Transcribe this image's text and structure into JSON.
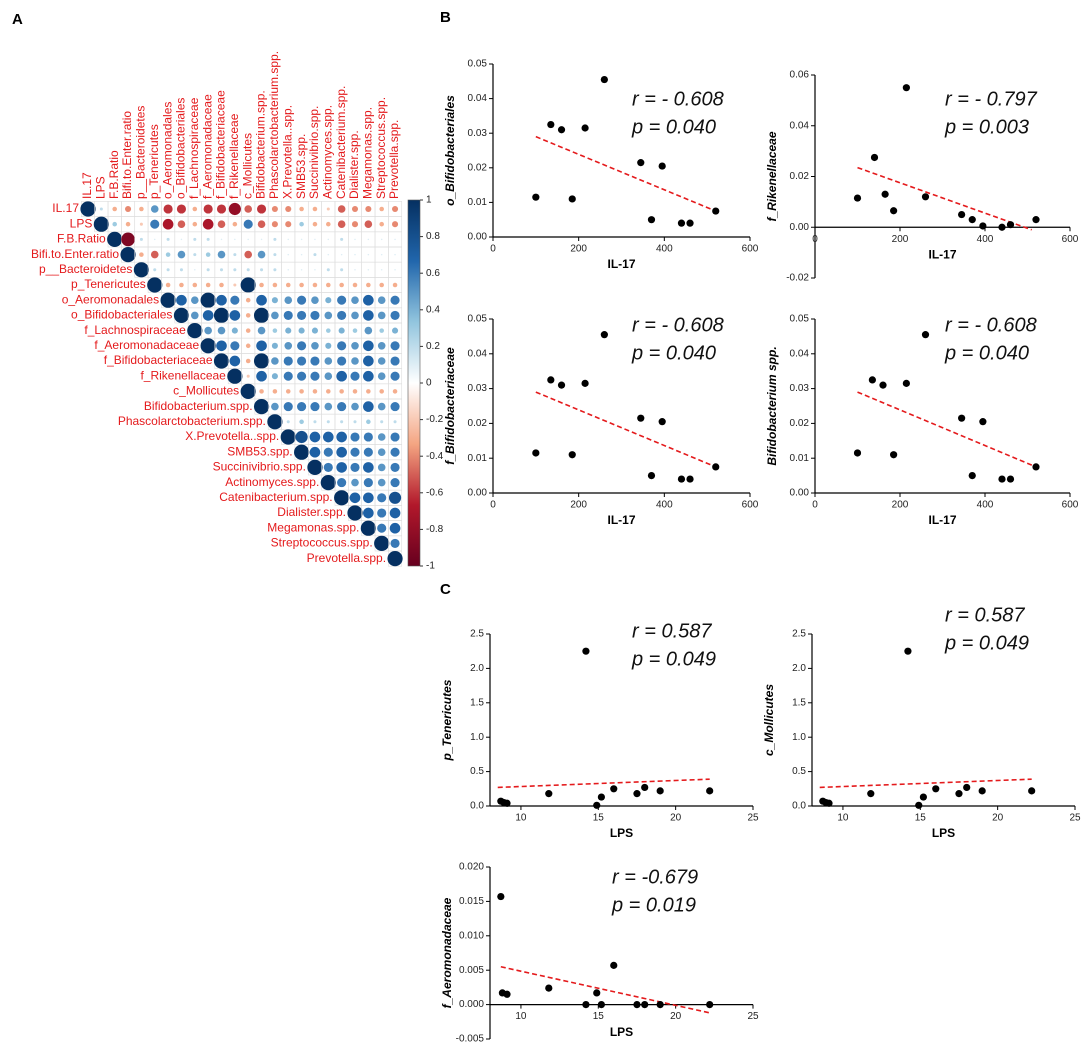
{
  "chart_data": [
    {
      "type": "corrplot",
      "panel": "A",
      "labels": [
        "IL.17",
        "LPS",
        "F.B.Ratio",
        "Bifi.to.Enter.ratio",
        "p__Bacteroidetes",
        "p_Tenericutes",
        "o_Aeromonadales",
        "o_Bifidobacteriales",
        "f_Lachnospiraceae",
        "f_Aeromonadaceae",
        "f_Bifidobacteriaceae",
        "f_Rikenellaceae",
        "c_Mollicutes",
        "Bifidobacterium.spp.",
        "Phascolarctobacterium.spp.",
        "X.Prevotella..spp.",
        "SMB53.spp.",
        "Succinivibrio.spp.",
        "Actinomyces.spp.",
        "Catenibacterium.spp.",
        "Dialister.spp.",
        "Megamonas.spp.",
        "Streptococcus.spp.",
        "Prevotella.spp."
      ],
      "matrix": [
        [
          1,
          0.2,
          -0.3,
          -0.4,
          -0.3,
          0.5,
          -0.6,
          -0.6,
          -0.3,
          -0.6,
          -0.6,
          -0.8,
          -0.5,
          -0.6,
          -0.4,
          -0.4,
          -0.3,
          -0.3,
          -0.2,
          -0.5,
          -0.4,
          -0.4,
          -0.3,
          -0.4
        ],
        [
          1,
          0.3,
          -0.3,
          -0.2,
          0.6,
          -0.7,
          -0.5,
          -0.3,
          -0.7,
          -0.5,
          -0.3,
          0.6,
          -0.5,
          -0.4,
          -0.4,
          0.3,
          -0.3,
          -0.3,
          -0.5,
          -0.4,
          -0.5,
          -0.3,
          -0.4
        ],
        [
          1,
          -0.9,
          0.2,
          0.1,
          0.2,
          0.1,
          0.2,
          0.2,
          0.1,
          0.1,
          0.1,
          0.1,
          0.2,
          0.1,
          0.1,
          0.1,
          0.1,
          0.2,
          0.1,
          0.1,
          0.1,
          0.1
        ],
        [
          1,
          -0.3,
          -0.5,
          0.3,
          0.5,
          0.2,
          0.3,
          0.5,
          0.2,
          -0.5,
          0.5,
          0.2,
          0.1,
          0.1,
          0.2,
          0.1,
          0.1,
          0.1,
          0.1,
          0.1,
          0.1
        ],
        [
          1,
          0.2,
          0.2,
          0.2,
          0.1,
          0.2,
          0.2,
          0.2,
          0.2,
          0.2,
          0.2,
          0.1,
          0.1,
          0.1,
          0.2,
          0.2,
          0.1,
          0.1,
          0.1,
          0.1
        ],
        [
          1,
          -0.3,
          -0.3,
          -0.3,
          -0.3,
          -0.3,
          -0.2,
          1,
          -0.3,
          -0.3,
          -0.3,
          -0.3,
          -0.3,
          -0.3,
          -0.3,
          -0.3,
          -0.3,
          -0.3,
          -0.3
        ],
        [
          1,
          0.7,
          0.5,
          1,
          0.7,
          0.6,
          -0.3,
          0.7,
          0.4,
          0.5,
          0.6,
          0.5,
          0.4,
          0.6,
          0.5,
          0.7,
          0.5,
          0.6
        ],
        [
          1,
          0.5,
          0.7,
          1,
          0.7,
          -0.3,
          1,
          0.5,
          0.6,
          0.6,
          0.6,
          0.5,
          0.6,
          0.5,
          0.7,
          0.5,
          0.6
        ],
        [
          1,
          0.5,
          0.5,
          0.4,
          -0.3,
          0.5,
          0.3,
          0.4,
          0.4,
          0.4,
          0.3,
          0.4,
          0.3,
          0.5,
          0.3,
          0.4
        ],
        [
          1,
          0.7,
          0.6,
          -0.3,
          0.7,
          0.4,
          0.5,
          0.6,
          0.5,
          0.4,
          0.6,
          0.5,
          0.7,
          0.5,
          0.6
        ],
        [
          1,
          0.7,
          -0.3,
          1,
          0.5,
          0.6,
          0.6,
          0.6,
          0.5,
          0.6,
          0.5,
          0.7,
          0.5,
          0.6
        ],
        [
          1,
          -0.2,
          0.7,
          0.4,
          0.6,
          0.6,
          0.6,
          0.5,
          0.7,
          0.6,
          0.7,
          0.5,
          0.6
        ],
        [
          1,
          -0.3,
          -0.3,
          -0.3,
          -0.3,
          -0.3,
          -0.3,
          -0.3,
          -0.3,
          -0.3,
          -0.3,
          -0.3
        ],
        [
          1,
          0.5,
          0.6,
          0.6,
          0.6,
          0.5,
          0.6,
          0.5,
          0.7,
          0.5,
          0.6
        ],
        [
          1,
          0.2,
          0.3,
          0.2,
          0.2,
          0.2,
          0.2,
          0.3,
          0.2,
          0.2
        ],
        [
          1,
          0.8,
          0.7,
          0.7,
          0.7,
          0.6,
          0.6,
          0.5,
          0.6
        ],
        [
          1,
          0.7,
          0.6,
          0.7,
          0.6,
          0.6,
          0.5,
          0.6
        ],
        [
          1,
          0.6,
          0.7,
          0.6,
          0.7,
          0.5,
          0.6
        ],
        [
          1,
          0.6,
          0.5,
          0.6,
          0.5,
          0.6
        ],
        [
          1,
          0.7,
          0.7,
          0.6,
          0.8
        ],
        [
          1,
          0.7,
          0.6,
          0.7
        ],
        [
          1,
          0.6,
          0.7
        ],
        [
          1,
          0.6
        ],
        [
          1
        ]
      ],
      "colorscale": [
        "#67001f",
        "#b2182b",
        "#f4a582",
        "#ffffff",
        "#92c5de",
        "#2166ac",
        "#053061"
      ],
      "cbar_ticks": [
        1,
        0.8,
        0.6,
        0.4,
        0.2,
        0,
        -0.2,
        -0.4,
        -0.6,
        -0.8,
        -1
      ],
      "label_color": "#e41a1c",
      "grid": true
    },
    {
      "type": "scatter",
      "panel": "B",
      "x": [
        100,
        135,
        160,
        185,
        215,
        260,
        345,
        370,
        395,
        440,
        460,
        520
      ],
      "y": [
        0.0115,
        0.0325,
        0.031,
        0.011,
        0.0315,
        0.0455,
        0.0215,
        0.005,
        0.0205,
        0.004,
        0.004,
        0.0075
      ],
      "color": "#000000",
      "fit": {
        "x": [
          100,
          520
        ],
        "y": [
          0.029,
          0.0075
        ],
        "color": "#e41a1c"
      },
      "x_label": "IL-17",
      "y_label": "o_Bifidobacteriales",
      "annotations": [
        "r = - 0.608",
        "p = 0.040"
      ],
      "xlim": [
        0,
        600
      ],
      "xticks": [
        0,
        200,
        400,
        600
      ],
      "ylim": [
        0,
        0.05
      ],
      "yticks": [
        {
          "value": 0,
          "label": "0.00"
        },
        0.01,
        0.02,
        0.03,
        0.04,
        0.05
      ]
    },
    {
      "type": "scatter",
      "x": [
        100,
        140,
        165,
        185,
        215,
        260,
        345,
        370,
        395,
        440,
        460,
        520
      ],
      "y": [
        0.0115,
        0.0275,
        0.013,
        0.0065,
        0.055,
        0.012,
        0.005,
        0.003,
        0.0005,
        0,
        0.001,
        0.003
      ],
      "color": "#000000",
      "fit": {
        "x": [
          100,
          510
        ],
        "y": [
          0.0235,
          -0.001
        ],
        "color": "#e41a1c"
      },
      "x_label": "IL-17",
      "y_label": "f_Rikenellaceae",
      "annotations": [
        "r = - 0.797",
        "p = 0.003"
      ],
      "xlim": [
        0,
        600
      ],
      "xticks": [
        0,
        200,
        400,
        600
      ],
      "ylim": [
        -0.02,
        0.06
      ],
      "yticks": [
        -0.02,
        {
          "value": 0,
          "label": "0.00"
        },
        0.02,
        0.04,
        0.06
      ]
    },
    {
      "type": "scatter",
      "x": [
        100,
        135,
        160,
        185,
        215,
        260,
        345,
        370,
        395,
        440,
        460,
        520
      ],
      "y": [
        0.0115,
        0.0325,
        0.031,
        0.011,
        0.0315,
        0.0455,
        0.0215,
        0.005,
        0.0205,
        0.004,
        0.004,
        0.0075
      ],
      "color": "#000000",
      "fit": {
        "x": [
          100,
          520
        ],
        "y": [
          0.029,
          0.0075
        ],
        "color": "#e41a1c"
      },
      "x_label": "IL-17",
      "y_label": "f_Bifidobacteriaceae",
      "annotations": [
        "r = - 0.608",
        "p = 0.040"
      ],
      "xlim": [
        0,
        600
      ],
      "xticks": [
        0,
        200,
        400,
        600
      ],
      "ylim": [
        0,
        0.05
      ],
      "yticks": [
        {
          "value": 0,
          "label": "0.00"
        },
        0.01,
        0.02,
        0.03,
        0.04,
        0.05
      ]
    },
    {
      "type": "scatter",
      "x": [
        100,
        135,
        160,
        185,
        215,
        260,
        345,
        370,
        395,
        440,
        460,
        520
      ],
      "y": [
        0.0115,
        0.0325,
        0.031,
        0.011,
        0.0315,
        0.0455,
        0.0215,
        0.005,
        0.0205,
        0.004,
        0.004,
        0.0075
      ],
      "color": "#000000",
      "fit": {
        "x": [
          100,
          520
        ],
        "y": [
          0.029,
          0.0075
        ],
        "color": "#e41a1c"
      },
      "x_label": "IL-17",
      "y_label": "Bifidobacterium spp.",
      "annotations": [
        "r = - 0.608",
        "p = 0.040"
      ],
      "xlim": [
        0,
        600
      ],
      "xticks": [
        0,
        200,
        400,
        600
      ],
      "ylim": [
        0,
        0.05
      ],
      "yticks": [
        {
          "value": 0,
          "label": "0.00"
        },
        0.01,
        0.02,
        0.03,
        0.04,
        0.05
      ]
    },
    {
      "type": "scatter",
      "panel": "C",
      "x": [
        8.7,
        8.9,
        9.1,
        11.8,
        14.2,
        14.9,
        15.2,
        16,
        17.5,
        18,
        19,
        22.2
      ],
      "y": [
        0.07,
        0.05,
        0.04,
        0.18,
        2.25,
        0.01,
        0.13,
        0.25,
        0.18,
        0.27,
        0.22,
        0.22
      ],
      "color": "#000000",
      "fit": {
        "x": [
          8.5,
          22.2
        ],
        "y": [
          0.27,
          0.39
        ],
        "color": "#e41a1c"
      },
      "x_label": "LPS",
      "y_label": "p_Tenericutes",
      "annotations": [
        "r =  0.587",
        "p = 0.049"
      ],
      "xlim": [
        8,
        25
      ],
      "xticks": [
        10,
        15,
        20,
        25
      ],
      "ylim": [
        0,
        2.5
      ],
      "yticks": [
        {
          "value": 0,
          "label": "0.0"
        },
        0.5,
        {
          "value": 1,
          "label": "1.0"
        },
        1.5,
        {
          "value": 2,
          "label": "2.0"
        },
        2.5
      ]
    },
    {
      "type": "scatter",
      "x": [
        8.7,
        8.9,
        9.1,
        11.8,
        14.2,
        14.9,
        15.2,
        16,
        17.5,
        18,
        19,
        22.2
      ],
      "y": [
        0.07,
        0.05,
        0.04,
        0.18,
        2.25,
        0.01,
        0.13,
        0.25,
        0.18,
        0.27,
        0.22,
        0.22
      ],
      "color": "#000000",
      "fit": {
        "x": [
          8.5,
          22.2
        ],
        "y": [
          0.27,
          0.39
        ],
        "color": "#e41a1c"
      },
      "x_label": "LPS",
      "y_label": "c_Mollicutes",
      "annotations": [
        "r = 0.587",
        "p = 0.049"
      ],
      "xlim": [
        8,
        25
      ],
      "xticks": [
        10,
        15,
        20,
        25
      ],
      "ylim": [
        0,
        2.5
      ],
      "yticks": [
        {
          "value": 0,
          "label": "0.0"
        },
        0.5,
        {
          "value": 1,
          "label": "1.0"
        },
        1.5,
        {
          "value": 2,
          "label": "2.0"
        },
        2.5
      ]
    },
    {
      "type": "scatter",
      "x": [
        8.7,
        8.8,
        9.1,
        11.8,
        14.2,
        14.9,
        15.2,
        16,
        17.5,
        18,
        19,
        22.2
      ],
      "y": [
        0.0157,
        0.0017,
        0.0015,
        0.0024,
        0,
        0.0017,
        0,
        0.0057,
        0,
        0,
        0,
        0
      ],
      "color": "#000000",
      "fit": {
        "x": [
          8.7,
          22.2
        ],
        "y": [
          0.0055,
          -0.0012
        ],
        "color": "#e41a1c"
      },
      "x_label": "LPS",
      "y_label": "f_Aeromonadaceae",
      "annotations": [
        "r =  -0.679",
        "p = 0.019"
      ],
      "xlim": [
        8,
        25
      ],
      "xticks": [
        10,
        15,
        20,
        25
      ],
      "ylim": [
        -0.005,
        0.02
      ],
      "yticks": [
        -0.005,
        {
          "value": 0,
          "label": "0.000"
        },
        0.005,
        {
          "value": 0.01,
          "label": "0.010"
        },
        0.015,
        {
          "value": 0.02,
          "label": "0.020"
        }
      ]
    }
  ]
}
